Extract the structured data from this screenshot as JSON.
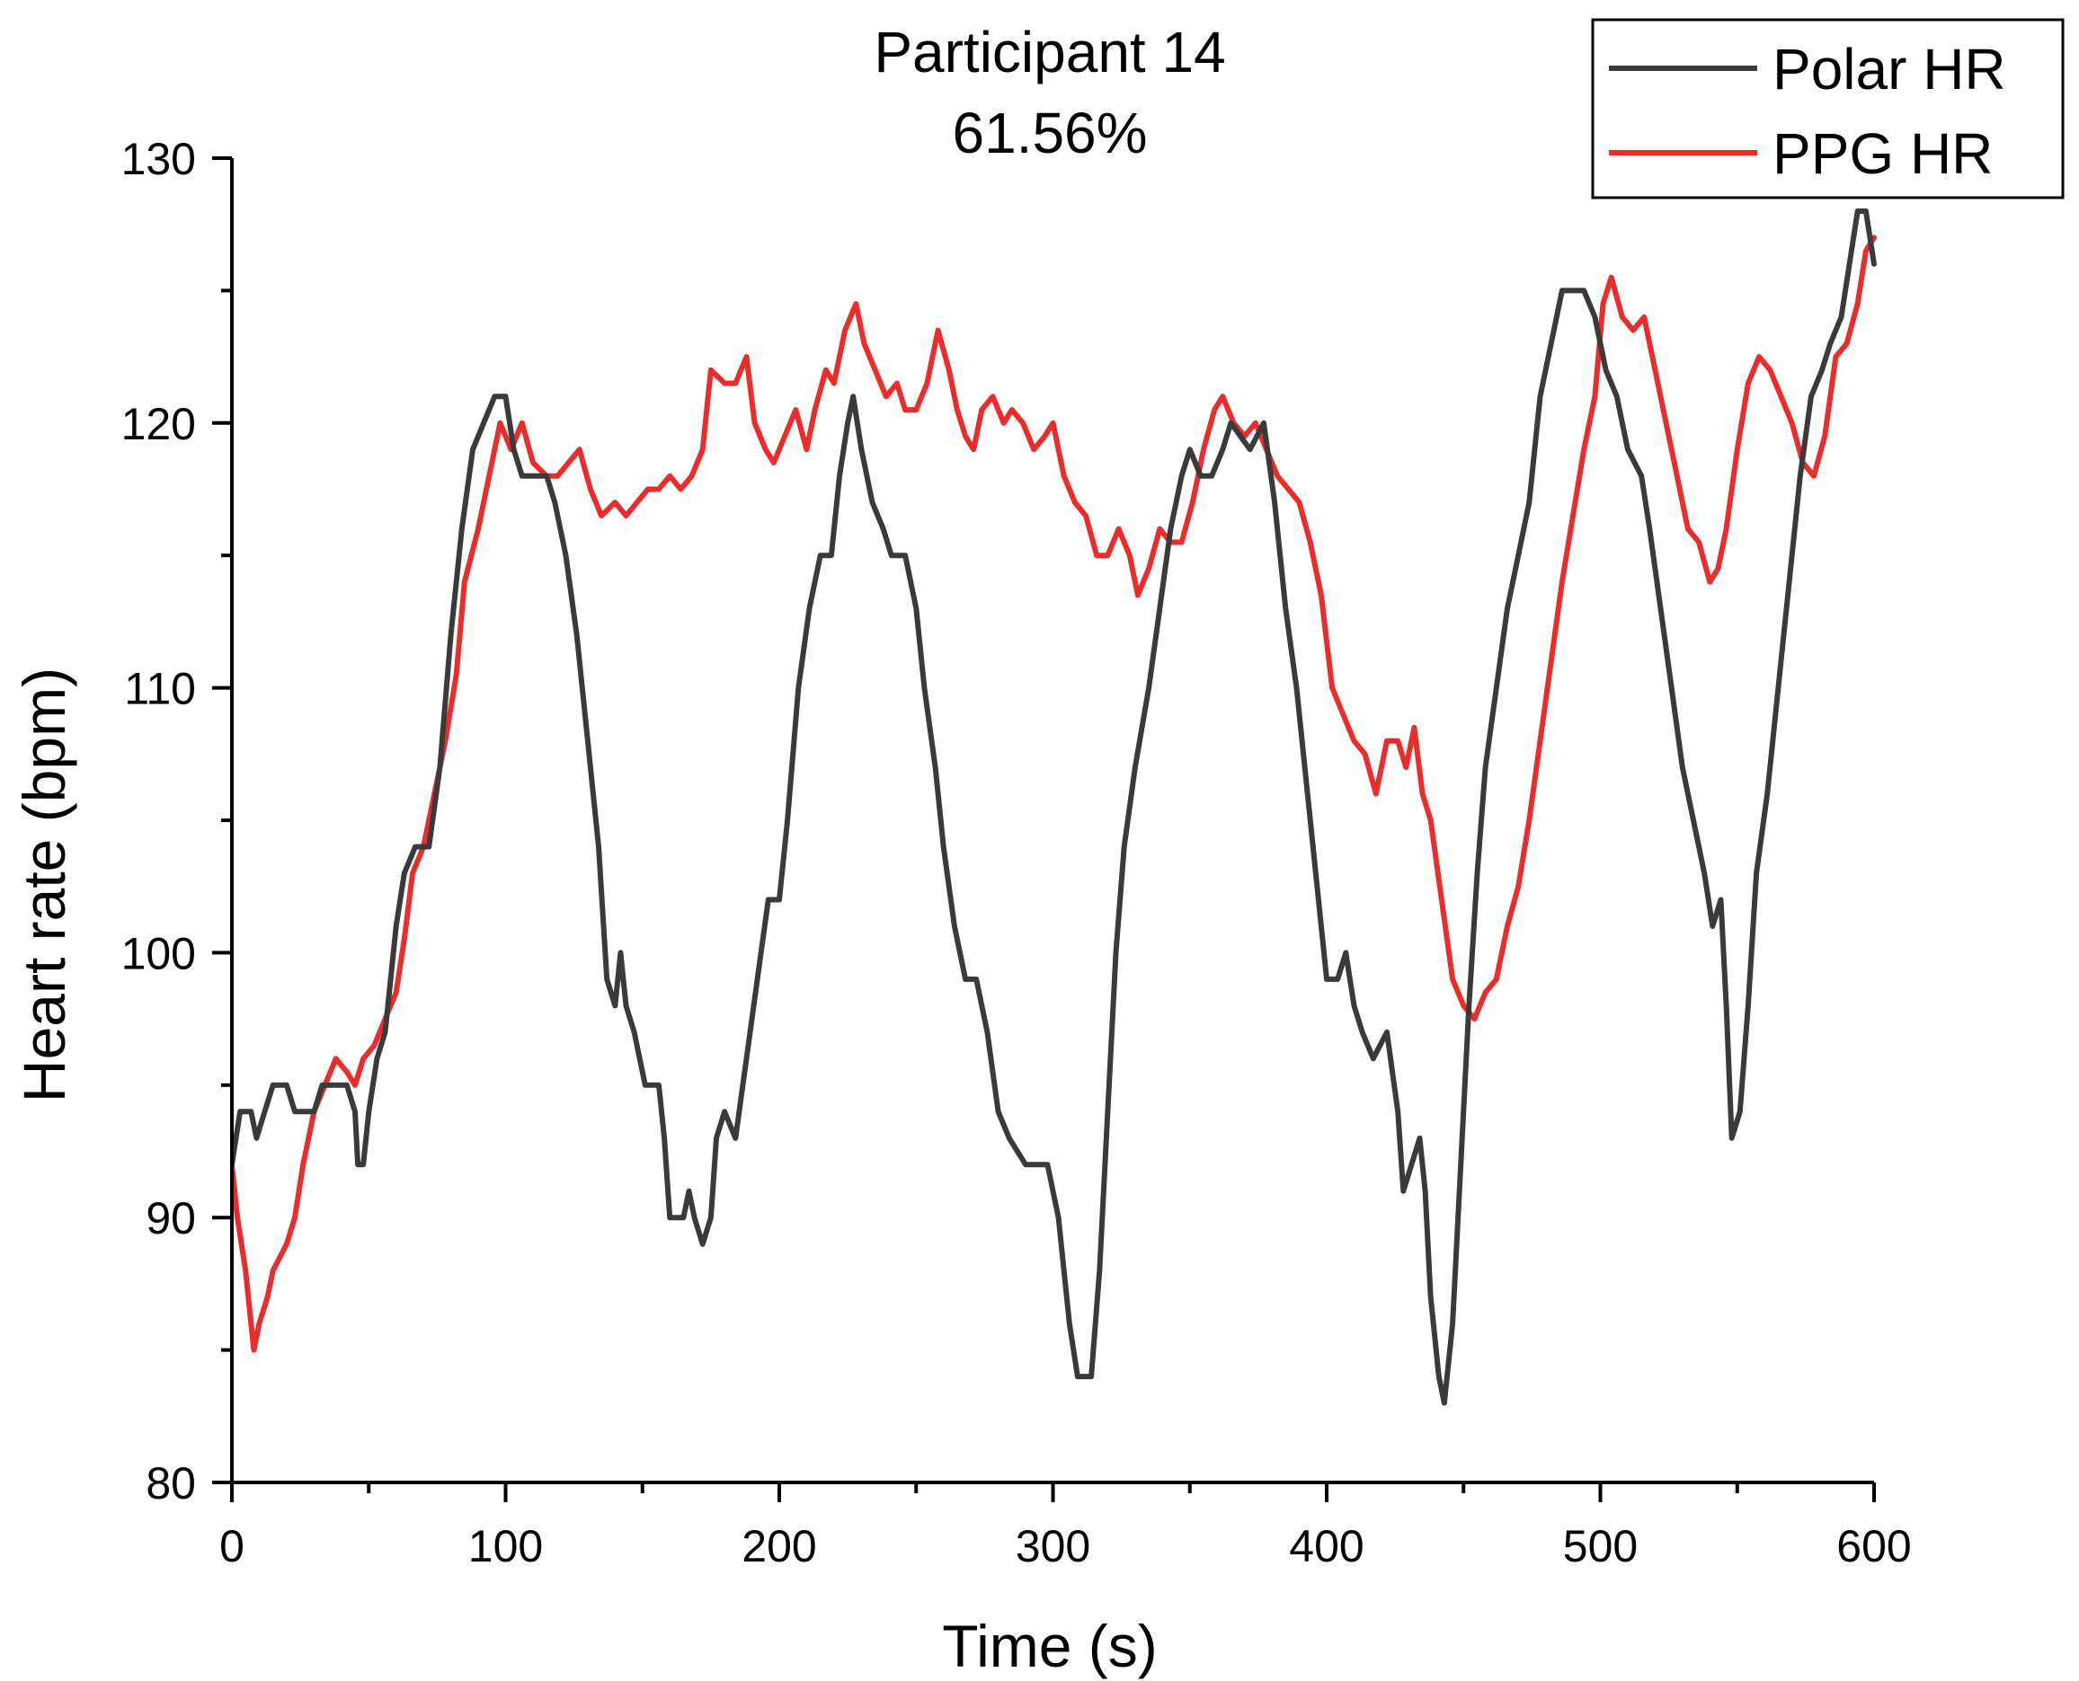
{
  "chart_data": {
    "type": "line",
    "title": "Participant 14",
    "subtitle": "61.56%",
    "xlabel": "Time (s)",
    "ylabel": "Heart rate (bpm)",
    "xlim": [
      0,
      600
    ],
    "ylim": [
      80,
      130
    ],
    "xticks": [
      0,
      100,
      200,
      300,
      400,
      500,
      600
    ],
    "yticks": [
      80,
      90,
      100,
      110,
      120,
      130
    ],
    "grid": false,
    "legend_position": "top-right",
    "series": [
      {
        "name": "Polar HR",
        "color": "#3a3a3a",
        "points": [
          [
            0,
            92
          ],
          [
            3,
            94
          ],
          [
            7,
            94
          ],
          [
            9,
            93
          ],
          [
            12,
            94
          ],
          [
            15,
            95
          ],
          [
            20,
            95
          ],
          [
            23,
            94
          ],
          [
            30,
            94
          ],
          [
            33,
            95
          ],
          [
            42,
            95
          ],
          [
            45,
            94
          ],
          [
            46,
            92
          ],
          [
            48,
            92
          ],
          [
            50,
            94
          ],
          [
            53,
            96
          ],
          [
            56,
            97
          ],
          [
            60,
            101
          ],
          [
            63,
            103
          ],
          [
            67,
            104
          ],
          [
            72,
            104
          ],
          [
            76,
            107
          ],
          [
            80,
            112
          ],
          [
            84,
            116
          ],
          [
            88,
            119
          ],
          [
            92,
            120
          ],
          [
            96,
            121
          ],
          [
            100,
            121
          ],
          [
            103,
            119
          ],
          [
            106,
            118
          ],
          [
            115,
            118
          ],
          [
            118,
            117
          ],
          [
            122,
            115
          ],
          [
            126,
            112
          ],
          [
            130,
            108
          ],
          [
            134,
            104
          ],
          [
            137,
            99
          ],
          [
            140,
            98
          ],
          [
            142,
            100
          ],
          [
            144,
            98
          ],
          [
            147,
            97
          ],
          [
            151,
            95
          ],
          [
            156,
            95
          ],
          [
            158,
            93
          ],
          [
            160,
            90
          ],
          [
            165,
            90
          ],
          [
            167,
            91
          ],
          [
            169,
            90
          ],
          [
            172,
            89
          ],
          [
            175,
            90
          ],
          [
            177,
            93
          ],
          [
            180,
            94
          ],
          [
            184,
            93
          ],
          [
            188,
            96
          ],
          [
            192,
            99
          ],
          [
            196,
            102
          ],
          [
            200,
            102
          ],
          [
            203,
            105
          ],
          [
            207,
            110
          ],
          [
            211,
            113
          ],
          [
            215,
            115
          ],
          [
            219,
            115
          ],
          [
            222,
            118
          ],
          [
            225,
            120
          ],
          [
            227,
            121
          ],
          [
            230,
            119
          ],
          [
            234,
            117
          ],
          [
            238,
            116
          ],
          [
            241,
            115
          ],
          [
            246,
            115
          ],
          [
            250,
            113
          ],
          [
            253,
            110
          ],
          [
            257,
            107
          ],
          [
            260,
            104
          ],
          [
            264,
            101
          ],
          [
            268,
            99
          ],
          [
            272,
            99
          ],
          [
            276,
            97
          ],
          [
            280,
            94
          ],
          [
            284,
            93
          ],
          [
            290,
            92
          ],
          [
            298,
            92
          ],
          [
            302,
            90
          ],
          [
            306,
            86
          ],
          [
            309,
            84
          ],
          [
            314,
            84
          ],
          [
            317,
            88
          ],
          [
            320,
            94
          ],
          [
            323,
            100
          ],
          [
            326,
            104
          ],
          [
            330,
            107
          ],
          [
            335,
            110
          ],
          [
            339,
            113
          ],
          [
            343,
            116
          ],
          [
            347,
            118
          ],
          [
            350,
            119
          ],
          [
            354,
            118
          ],
          [
            358,
            118
          ],
          [
            362,
            119
          ],
          [
            365,
            120
          ],
          [
            372,
            119
          ],
          [
            377,
            120
          ],
          [
            381,
            117
          ],
          [
            385,
            113
          ],
          [
            389,
            110
          ],
          [
            393,
            106
          ],
          [
            397,
            102
          ],
          [
            400,
            99
          ],
          [
            404,
            99
          ],
          [
            407,
            100
          ],
          [
            410,
            98
          ],
          [
            413,
            97
          ],
          [
            417,
            96
          ],
          [
            422,
            97
          ],
          [
            426,
            94
          ],
          [
            428,
            91
          ],
          [
            431,
            92
          ],
          [
            434,
            93
          ],
          [
            436,
            91
          ],
          [
            438,
            87
          ],
          [
            441,
            84
          ],
          [
            443,
            83
          ],
          [
            446,
            86
          ],
          [
            449,
            92
          ],
          [
            452,
            98
          ],
          [
            455,
            103
          ],
          [
            458,
            107
          ],
          [
            462,
            110
          ],
          [
            466,
            113
          ],
          [
            470,
            115
          ],
          [
            474,
            117
          ],
          [
            478,
            121
          ],
          [
            482,
            123
          ],
          [
            486,
            125
          ],
          [
            494,
            125
          ],
          [
            498,
            124
          ],
          [
            502,
            122
          ],
          [
            506,
            121
          ],
          [
            510,
            119
          ],
          [
            515,
            118
          ],
          [
            518,
            116
          ],
          [
            522,
            113
          ],
          [
            526,
            110
          ],
          [
            530,
            107
          ],
          [
            534,
            105
          ],
          [
            538,
            103
          ],
          [
            541,
            101
          ],
          [
            544,
            102
          ],
          [
            546,
            98
          ],
          [
            548,
            93
          ],
          [
            551,
            94
          ],
          [
            554,
            98
          ],
          [
            557,
            103
          ],
          [
            561,
            106
          ],
          [
            565,
            110
          ],
          [
            569,
            114
          ],
          [
            573,
            118
          ],
          [
            577,
            121
          ],
          [
            581,
            122
          ],
          [
            584,
            123
          ],
          [
            588,
            124
          ],
          [
            591,
            126
          ],
          [
            594,
            128
          ],
          [
            597,
            128
          ],
          [
            600,
            126
          ]
        ]
      },
      {
        "name": "PPG HR",
        "color": "#ee2b2b",
        "points": [
          [
            0,
            92
          ],
          [
            2,
            90
          ],
          [
            5,
            88
          ],
          [
            8,
            85
          ],
          [
            10,
            86
          ],
          [
            13,
            87
          ],
          [
            15,
            88
          ],
          [
            20,
            89
          ],
          [
            23,
            90
          ],
          [
            26,
            92
          ],
          [
            30,
            94
          ],
          [
            34,
            95
          ],
          [
            38,
            96
          ],
          [
            42,
            95.5
          ],
          [
            45,
            95
          ],
          [
            48,
            96
          ],
          [
            52,
            96.5
          ],
          [
            56,
            97.5
          ],
          [
            60,
            98.5
          ],
          [
            63,
            100.5
          ],
          [
            66,
            103
          ],
          [
            70,
            104
          ],
          [
            74,
            106
          ],
          [
            78,
            108
          ],
          [
            82,
            110.5
          ],
          [
            85,
            114
          ],
          [
            90,
            116
          ],
          [
            94,
            118
          ],
          [
            98,
            120
          ],
          [
            102,
            119
          ],
          [
            106,
            120
          ],
          [
            110,
            118.5
          ],
          [
            115,
            118
          ],
          [
            119,
            118
          ],
          [
            123,
            118.5
          ],
          [
            127,
            119
          ],
          [
            131,
            117.5
          ],
          [
            135,
            116.5
          ],
          [
            140,
            117
          ],
          [
            144,
            116.5
          ],
          [
            148,
            117
          ],
          [
            152,
            117.5
          ],
          [
            156,
            117.5
          ],
          [
            160,
            118
          ],
          [
            164,
            117.5
          ],
          [
            168,
            118
          ],
          [
            172,
            119
          ],
          [
            175,
            122
          ],
          [
            180,
            121.5
          ],
          [
            184,
            121.5
          ],
          [
            188,
            122.5
          ],
          [
            191,
            120
          ],
          [
            195,
            119
          ],
          [
            198,
            118.5
          ],
          [
            202,
            119.5
          ],
          [
            206,
            120.5
          ],
          [
            210,
            119
          ],
          [
            213,
            120.5
          ],
          [
            217,
            122
          ],
          [
            220,
            121.5
          ],
          [
            224,
            123.5
          ],
          [
            228,
            124.5
          ],
          [
            231,
            123
          ],
          [
            235,
            122
          ],
          [
            239,
            121
          ],
          [
            243,
            121.5
          ],
          [
            246,
            120.5
          ],
          [
            250,
            120.5
          ],
          [
            254,
            121.5
          ],
          [
            258,
            123.5
          ],
          [
            262,
            122
          ],
          [
            265,
            120.5
          ],
          [
            268,
            119.5
          ],
          [
            271,
            119
          ],
          [
            274,
            120.5
          ],
          [
            278,
            121
          ],
          [
            282,
            120
          ],
          [
            285,
            120.5
          ],
          [
            289,
            120
          ],
          [
            293,
            119
          ],
          [
            297,
            119.5
          ],
          [
            300,
            120
          ],
          [
            304,
            118
          ],
          [
            308,
            117
          ],
          [
            312,
            116.5
          ],
          [
            316,
            115
          ],
          [
            320,
            115
          ],
          [
            324,
            116
          ],
          [
            328,
            115
          ],
          [
            331,
            113.5
          ],
          [
            335,
            114.5
          ],
          [
            339,
            116
          ],
          [
            343,
            115.5
          ],
          [
            347,
            115.5
          ],
          [
            351,
            117
          ],
          [
            355,
            119
          ],
          [
            359,
            120.5
          ],
          [
            362,
            121
          ],
          [
            366,
            120
          ],
          [
            370,
            119.5
          ],
          [
            374,
            120
          ],
          [
            378,
            119
          ],
          [
            382,
            118
          ],
          [
            386,
            117.5
          ],
          [
            390,
            117
          ],
          [
            394,
            115.5
          ],
          [
            398,
            113.5
          ],
          [
            402,
            110
          ],
          [
            406,
            109
          ],
          [
            410,
            108
          ],
          [
            414,
            107.5
          ],
          [
            418,
            106
          ],
          [
            422,
            108
          ],
          [
            426,
            108
          ],
          [
            429,
            107
          ],
          [
            432,
            108.5
          ],
          [
            435,
            106
          ],
          [
            438,
            105
          ],
          [
            442,
            102
          ],
          [
            446,
            99
          ],
          [
            450,
            98
          ],
          [
            454,
            97.5
          ],
          [
            458,
            98.5
          ],
          [
            462,
            99
          ],
          [
            466,
            101
          ],
          [
            470,
            102.5
          ],
          [
            474,
            105
          ],
          [
            478,
            108
          ],
          [
            482,
            111
          ],
          [
            486,
            114
          ],
          [
            490,
            116.5
          ],
          [
            494,
            119
          ],
          [
            498,
            121
          ],
          [
            501,
            124.5
          ],
          [
            504,
            125.5
          ],
          [
            508,
            124
          ],
          [
            512,
            123.5
          ],
          [
            516,
            124
          ],
          [
            520,
            122
          ],
          [
            524,
            120
          ],
          [
            528,
            118
          ],
          [
            532,
            116
          ],
          [
            536,
            115.5
          ],
          [
            540,
            114
          ],
          [
            543,
            114.5
          ],
          [
            546,
            116
          ],
          [
            550,
            119
          ],
          [
            554,
            121.5
          ],
          [
            558,
            122.5
          ],
          [
            562,
            122
          ],
          [
            566,
            121
          ],
          [
            570,
            120
          ],
          [
            574,
            118.5
          ],
          [
            578,
            118
          ],
          [
            582,
            119.5
          ],
          [
            586,
            122.5
          ],
          [
            590,
            123
          ],
          [
            594,
            124.5
          ],
          [
            597,
            126.5
          ],
          [
            600,
            127
          ]
        ]
      }
    ]
  }
}
